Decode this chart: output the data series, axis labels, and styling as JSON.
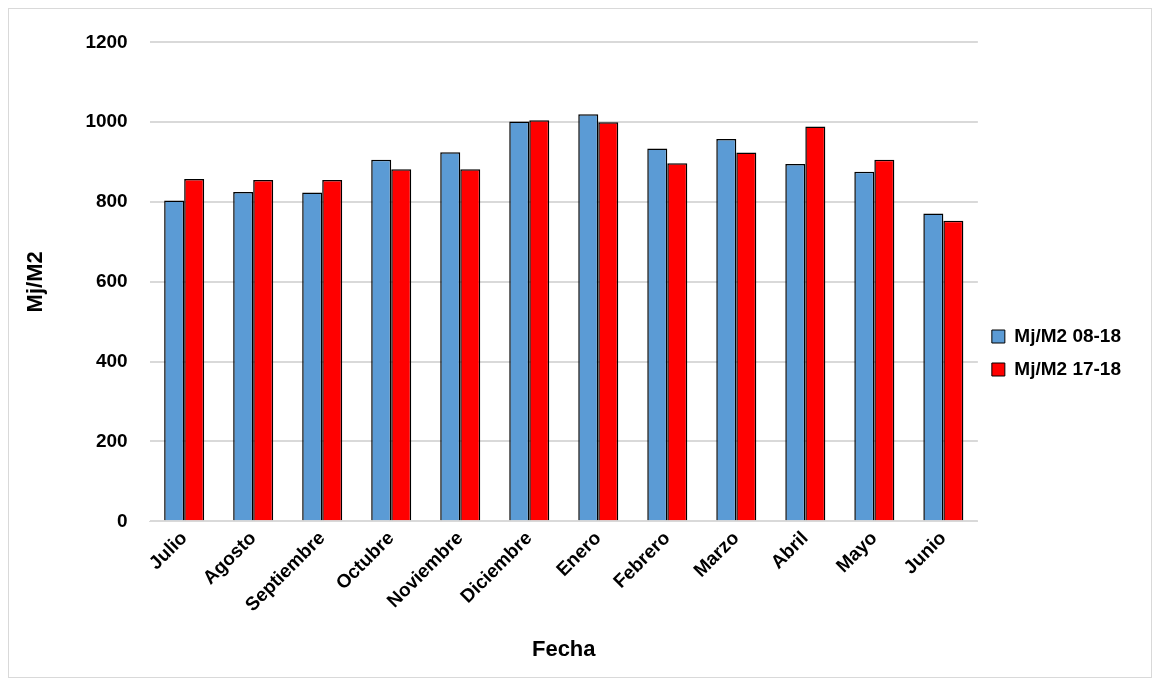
{
  "chart_data": {
    "type": "bar",
    "xlabel": "Fecha",
    "ylabel": "Mj/M2",
    "categories": [
      "Julio",
      "Agosto",
      "Septiembre",
      "Octubre",
      "Noviembre",
      "Diciembre",
      "Enero",
      "Febrero",
      "Marzo",
      "Abril",
      "Mayo",
      "Junio"
    ],
    "series": [
      {
        "name": "Mj/M2 08-18",
        "color": "#5b9bd5",
        "values": [
          804,
          825,
          824,
          906,
          925,
          1002,
          1020,
          934,
          958,
          895,
          876,
          771
        ]
      },
      {
        "name": "Mj/M2 17-18",
        "color": "#ff0000",
        "values": [
          858,
          855,
          855,
          882,
          882,
          1005,
          1000,
          897,
          924,
          989,
          906,
          753
        ]
      }
    ],
    "ylim": [
      0,
      1200
    ],
    "yticks": [
      0,
      200,
      400,
      600,
      800,
      1000,
      1200
    ],
    "grid": "y",
    "legend": "right"
  }
}
